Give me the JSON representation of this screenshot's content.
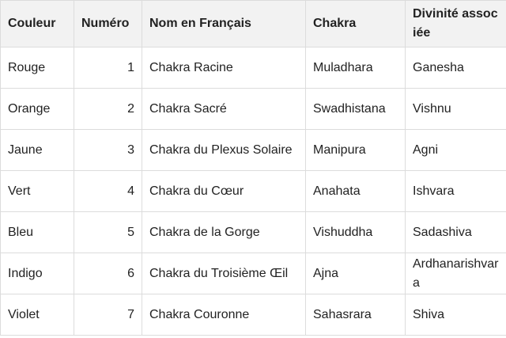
{
  "table": {
    "header": [
      "Couleur",
      "Numéro",
      "Nom en Français",
      "Chakra",
      "Divinité associée"
    ],
    "rows": [
      [
        "Rouge",
        1,
        "Chakra Racine",
        "Muladhara",
        "Ganesha"
      ],
      [
        "Orange",
        2,
        "Chakra Sacré",
        "Swadhistana",
        "Vishnu"
      ],
      [
        "Jaune",
        3,
        "Chakra du Plexus Solaire",
        "Manipura",
        "Agni"
      ],
      [
        "Vert",
        4,
        "Chakra du Cœur",
        "Anahata",
        "Ishvara"
      ],
      [
        "Bleu",
        5,
        "Chakra de la Gorge",
        "Vishuddha",
        "Sadashiva"
      ],
      [
        "Indigo",
        6,
        "Chakra du Troisième Œil",
        "Ajna",
        "Ardhanarishvara"
      ],
      [
        "Violet",
        7,
        "Chakra Couronne",
        "Sahasrara",
        "Shiva"
      ]
    ]
  }
}
